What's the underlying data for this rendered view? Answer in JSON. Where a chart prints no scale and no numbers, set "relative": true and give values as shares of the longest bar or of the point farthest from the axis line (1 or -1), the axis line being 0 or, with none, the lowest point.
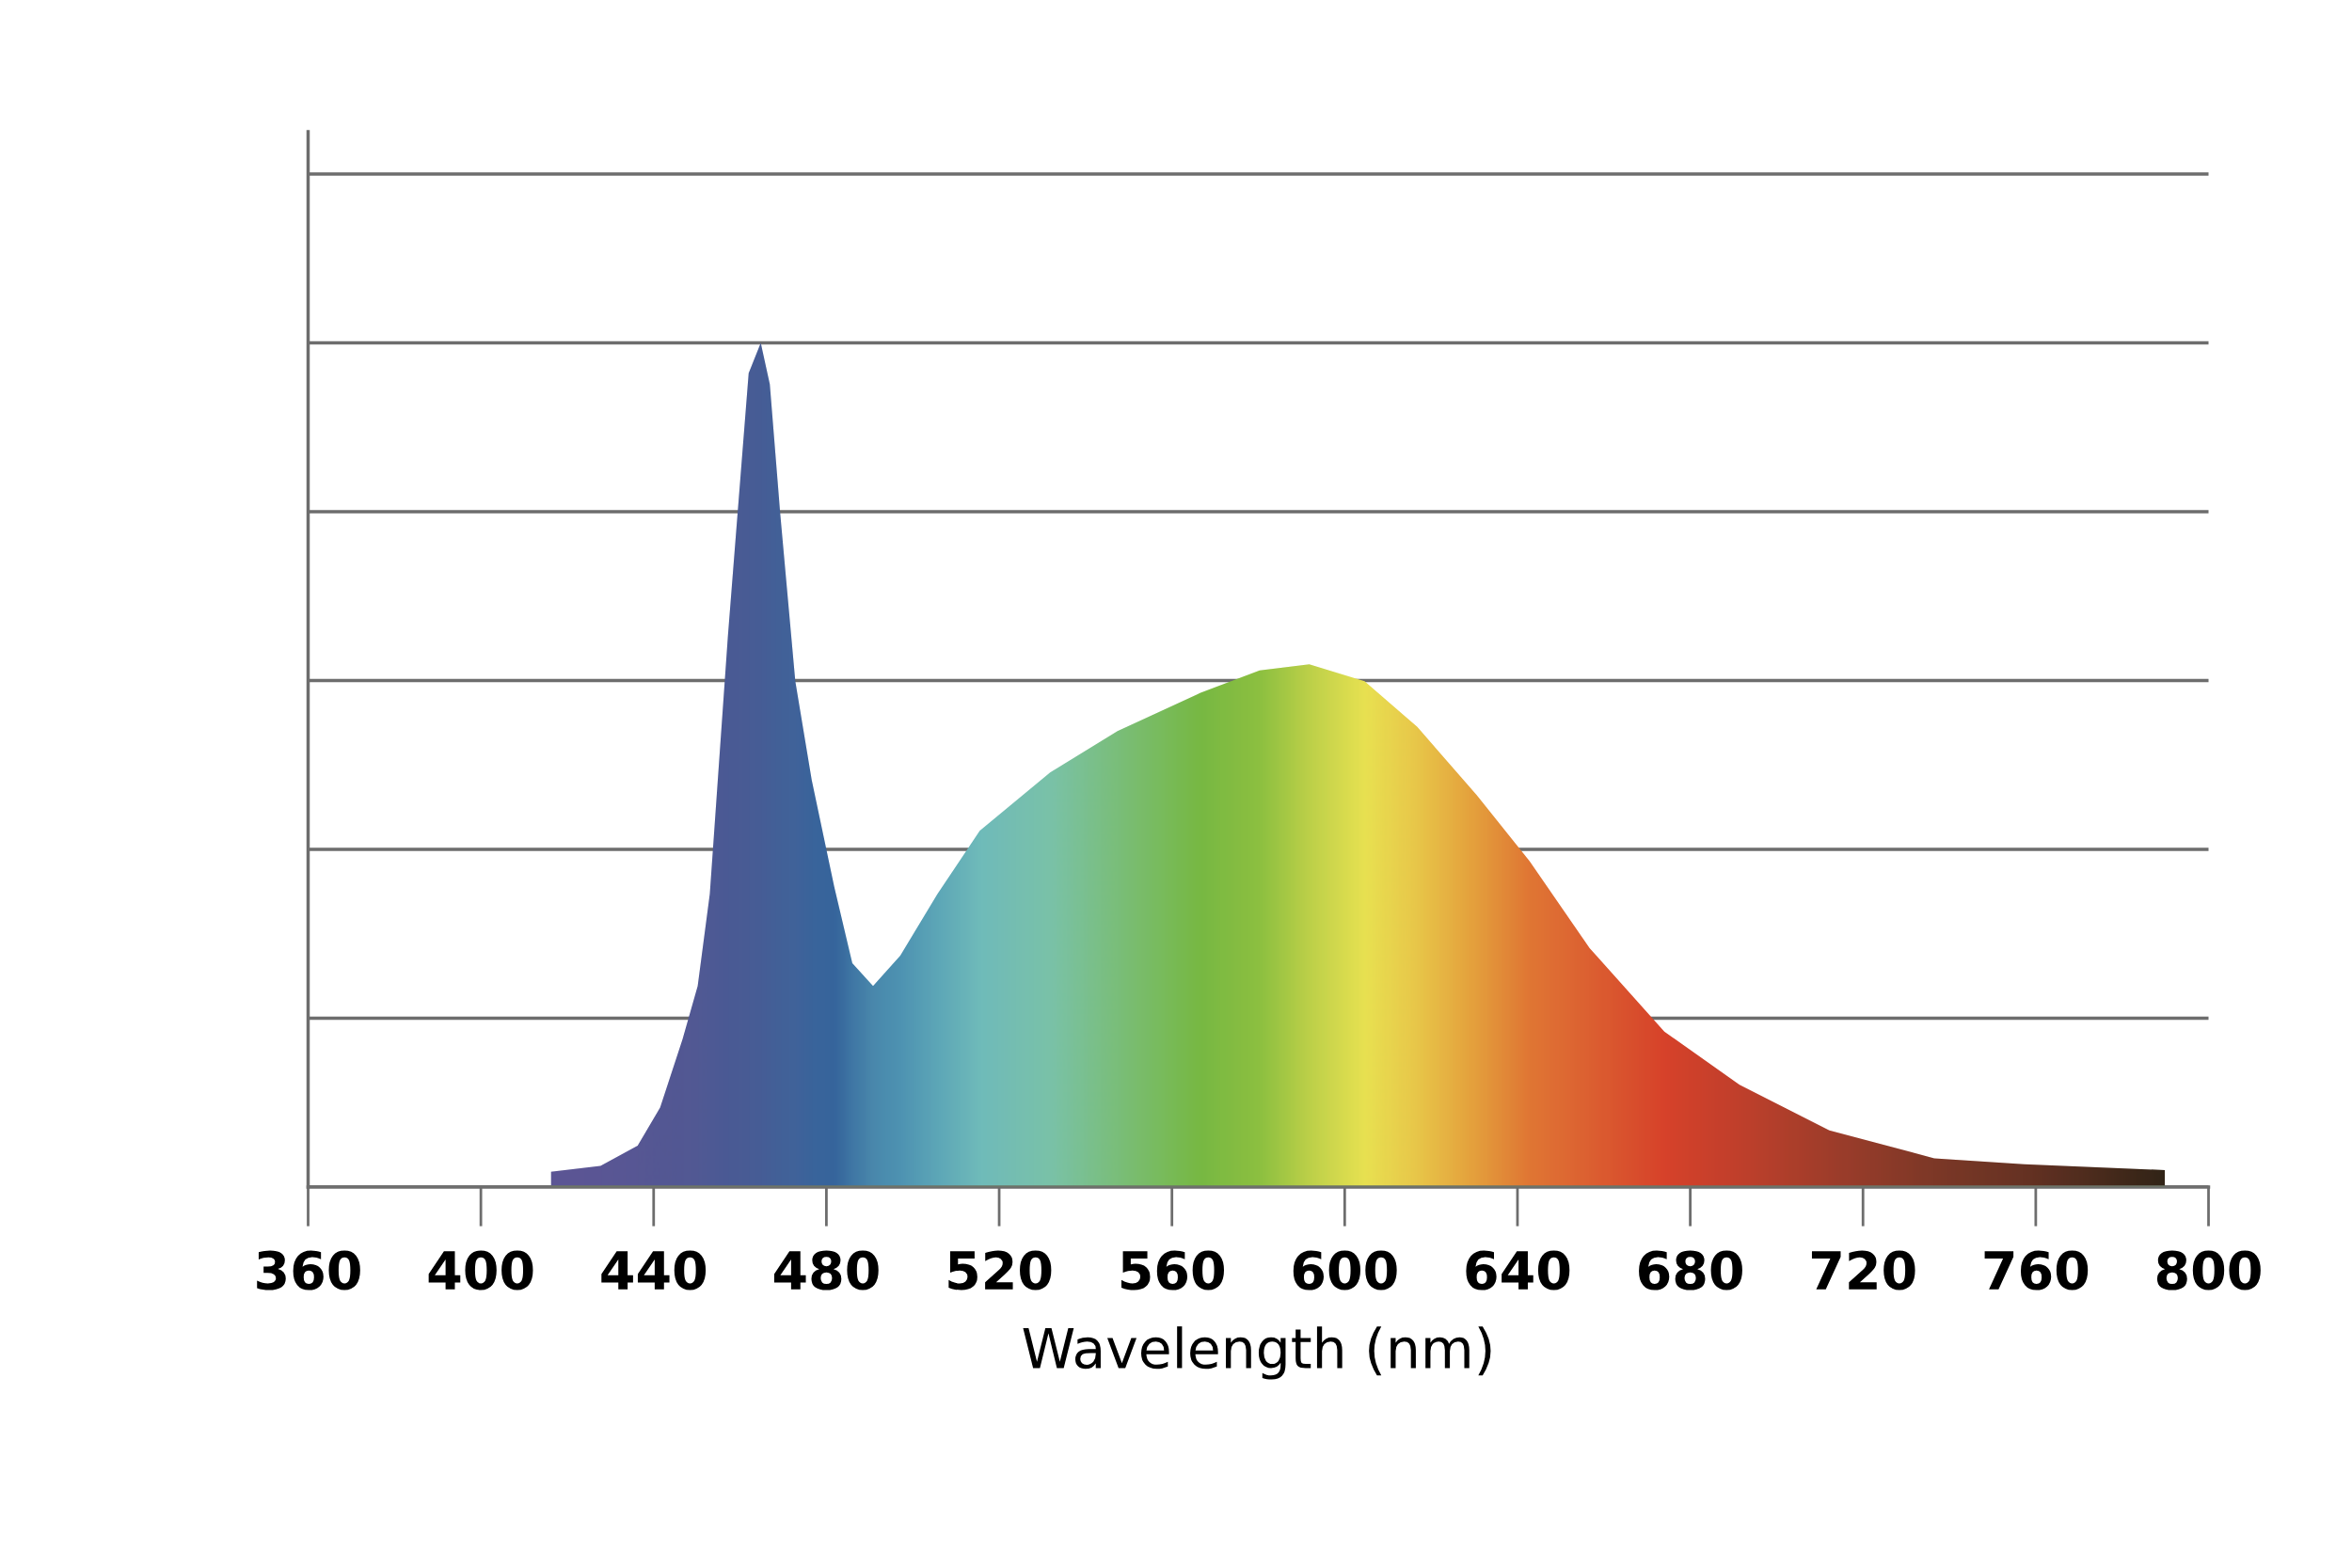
{
  "chart_data": {
    "type": "area",
    "relative": true,
    "xlabel": "Wavelength (nm)",
    "xlim": [
      360,
      800
    ],
    "xticks": [
      360,
      400,
      440,
      480,
      520,
      560,
      600,
      640,
      680,
      720,
      760,
      800
    ],
    "grid": "y",
    "series": [
      {
        "x": [
          416.2,
          427.7,
          436.3,
          441.5,
          446.7,
          450.2,
          453.0,
          457.2,
          462.0,
          464.8,
          466.9,
          469.3,
          472.8,
          476.6,
          481.8,
          486.0,
          490.8,
          497.1,
          505.7,
          515.5,
          531.8,
          547.4,
          566.5,
          580.3,
          591.8,
          604.6,
          616.8,
          630.6,
          642.8,
          656.7,
          674.0,
          691.4,
          712.2,
          736.5,
          757.3,
          789.9
        ],
        "values": [
          0.018,
          0.025,
          0.049,
          0.094,
          0.175,
          0.238,
          0.347,
          0.653,
          0.964,
          1.0,
          0.951,
          0.798,
          0.599,
          0.482,
          0.356,
          0.265,
          0.238,
          0.274,
          0.347,
          0.422,
          0.491,
          0.54,
          0.585,
          0.612,
          0.619,
          0.599,
          0.545,
          0.464,
          0.386,
          0.283,
          0.184,
          0.121,
          0.067,
          0.034,
          0.027,
          0.02
        ],
        "color": "#78b843",
        "colors": [
          "#5a4a9e",
          "#574b9d",
          "#544c9d",
          "#514c9c",
          "#4f4d9c",
          "#4d4e9d",
          "#4a4f9d",
          "#46509e",
          "#43529f",
          "#4153a0",
          "#3f55a1",
          "#3d57a2",
          "#3a59a4",
          "#345ba5",
          "#2f5ca6",
          "#3a70b0",
          "#4583b8",
          "#4a8fbf",
          "#5ba5c4",
          "#6fbbc8",
          "#7bc3b4",
          "#7bbf80",
          "#78b843",
          "#90c140",
          "#c5d34a",
          "#f5e653",
          "#f5c84a",
          "#f19b3b",
          "#ec6f33",
          "#e8562f",
          "#e23528",
          "#c9322a",
          "#a42f28",
          "#7e2a24",
          "#652320",
          "#2a1412"
        ]
      }
    ]
  }
}
